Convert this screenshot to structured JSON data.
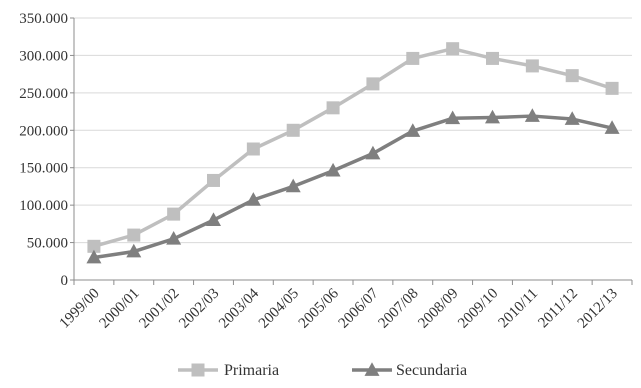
{
  "chart_data": {
    "type": "line",
    "title": "",
    "xlabel": "",
    "ylabel": "",
    "categories": [
      "1999/00",
      "2000/01",
      "2001/02",
      "2002/03",
      "2003/04",
      "2004/05",
      "2005/06",
      "2006/07",
      "2007/08",
      "2008/09",
      "2009/10",
      "2010/11",
      "2011/12",
      "2012/13"
    ],
    "ylim": [
      0,
      350000
    ],
    "y_ticks": [
      0,
      50000,
      100000,
      150000,
      200000,
      250000,
      300000,
      350000
    ],
    "y_tick_labels": [
      "0",
      "50.000",
      "100.000",
      "150.000",
      "200.000",
      "250.000",
      "300.000",
      "350.000"
    ],
    "grid": "horizontal",
    "legend_position": "bottom",
    "series": [
      {
        "name": "Primaria",
        "marker": "square",
        "color": "#bfbfbf",
        "values": [
          45000,
          60000,
          88000,
          133000,
          175000,
          200000,
          230000,
          262000,
          296000,
          309000,
          296000,
          286000,
          273000,
          256000
        ]
      },
      {
        "name": "Secundaria",
        "marker": "triangle",
        "color": "#7f7f7f",
        "values": [
          30000,
          38000,
          55000,
          80000,
          107000,
          125000,
          146000,
          169000,
          199000,
          216000,
          217000,
          219000,
          215000,
          203000
        ]
      }
    ]
  }
}
